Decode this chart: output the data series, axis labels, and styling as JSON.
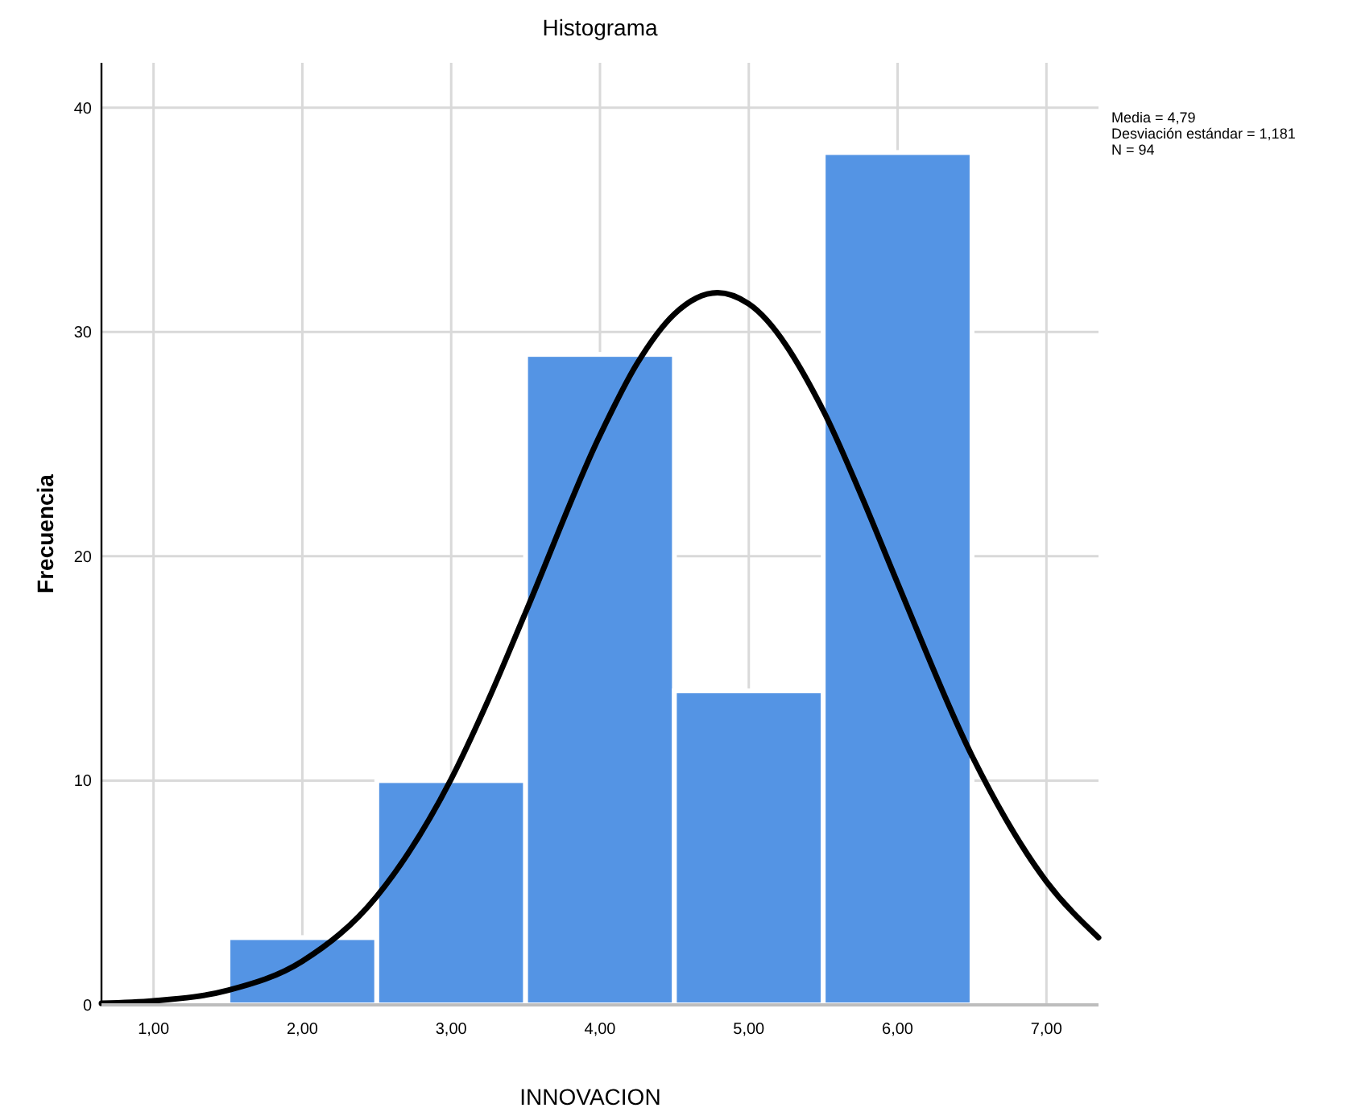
{
  "chart_data": {
    "type": "histogram",
    "title": "Histograma",
    "xlabel": "INNOVACION",
    "ylabel": "Frecuencia",
    "bins": [
      1.5,
      2.5,
      3.5,
      4.5,
      5.5,
      6.5
    ],
    "values": [
      3,
      10,
      29,
      14,
      38
    ],
    "color": "#5494e4",
    "series": [
      {
        "type": "line",
        "color": "#000000",
        "x": [
          0.65,
          1.0,
          1.5,
          2.0,
          2.5,
          3.0,
          3.25,
          3.5,
          4.0,
          4.25,
          4.5,
          4.79,
          5.0,
          5.5,
          5.75,
          6.0,
          6.5,
          7.0,
          7.35
        ],
        "values": [
          0.07,
          0.18,
          0.65,
          1.95,
          4.84,
          10.07,
          13.6,
          17.5,
          25.4,
          28.6,
          30.8,
          31.75,
          31.25,
          26.5,
          22.8,
          18.8,
          11.1,
          5.5,
          3.0
        ]
      }
    ],
    "xlim": [
      0.65,
      7.35
    ],
    "ylim": [
      0,
      42
    ],
    "xticks": [
      {
        "value": 1,
        "label": "1,00"
      },
      {
        "value": 2,
        "label": "2,00"
      },
      {
        "value": 3,
        "label": "3,00"
      },
      {
        "value": 4,
        "label": "4,00"
      },
      {
        "value": 5,
        "label": "5,00"
      },
      {
        "value": 6,
        "label": "6,00"
      },
      {
        "value": 7,
        "label": "7,00"
      }
    ],
    "yticks": [
      0,
      10,
      20,
      30,
      40
    ],
    "grid": true,
    "annotations": [
      "Media = 4,79",
      "Desviación estándar = 1,181",
      "N = 94"
    ]
  }
}
